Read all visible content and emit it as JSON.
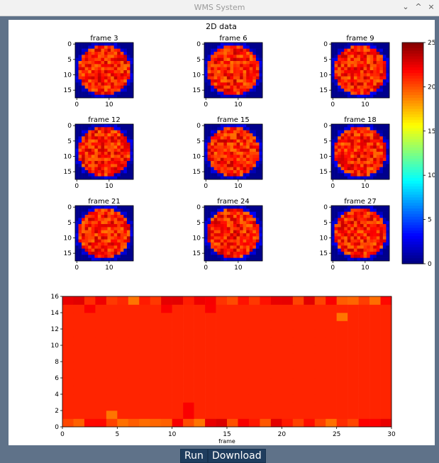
{
  "window": {
    "title": "WMS System",
    "controls": [
      {
        "name": "minimize-button",
        "glyph": "⌄"
      },
      {
        "name": "maximize-button",
        "glyph": "^"
      },
      {
        "name": "close-button",
        "glyph": "×"
      }
    ]
  },
  "figure": {
    "suptitle": "2D data"
  },
  "chart_data": [
    {
      "type": "heatmap",
      "subplots": [
        {
          "title": "frame 3"
        },
        {
          "title": "frame 6"
        },
        {
          "title": "frame 9"
        },
        {
          "title": "frame 12"
        },
        {
          "title": "frame 15"
        },
        {
          "title": "frame 18"
        },
        {
          "title": "frame 21"
        },
        {
          "title": "frame 24"
        },
        {
          "title": "frame 27"
        }
      ],
      "grid_size": [
        18,
        18
      ],
      "yticks": [
        0,
        5,
        10,
        15
      ],
      "xticks": [
        0,
        10
      ],
      "colormap": "jet",
      "colorbar": {
        "ticks": [
          0,
          5,
          10,
          15,
          20,
          25
        ],
        "vmin": 0,
        "vmax": 25
      },
      "note_values": "interior cells ~20-24 (red), background ~0 (dark blue)"
    },
    {
      "type": "heatmap",
      "xlabel": "frame",
      "xlim": [
        0,
        30
      ],
      "ylim": [
        0,
        16
      ],
      "xticks": [
        0,
        5,
        10,
        15,
        20,
        25,
        30
      ],
      "yticks": [
        0,
        2,
        4,
        6,
        8,
        10,
        12,
        14,
        16
      ],
      "base_value": 21,
      "highlight_cells": [
        {
          "x": 2,
          "y": 14,
          "v": 22
        },
        {
          "x": 9,
          "y": 14,
          "v": 22
        },
        {
          "x": 13,
          "y": 14,
          "v": 22
        },
        {
          "x": 25,
          "y": 13,
          "v": 19
        },
        {
          "x": 4,
          "y": 1,
          "v": 19
        },
        {
          "x": 11,
          "y": 1,
          "v": 22
        },
        {
          "x": 11,
          "y": 2,
          "v": 22
        }
      ]
    }
  ],
  "buttons": {
    "run": "Run",
    "download": "Download"
  },
  "colors": {
    "accent": "#1f3d5e",
    "background": "#5f7289"
  }
}
